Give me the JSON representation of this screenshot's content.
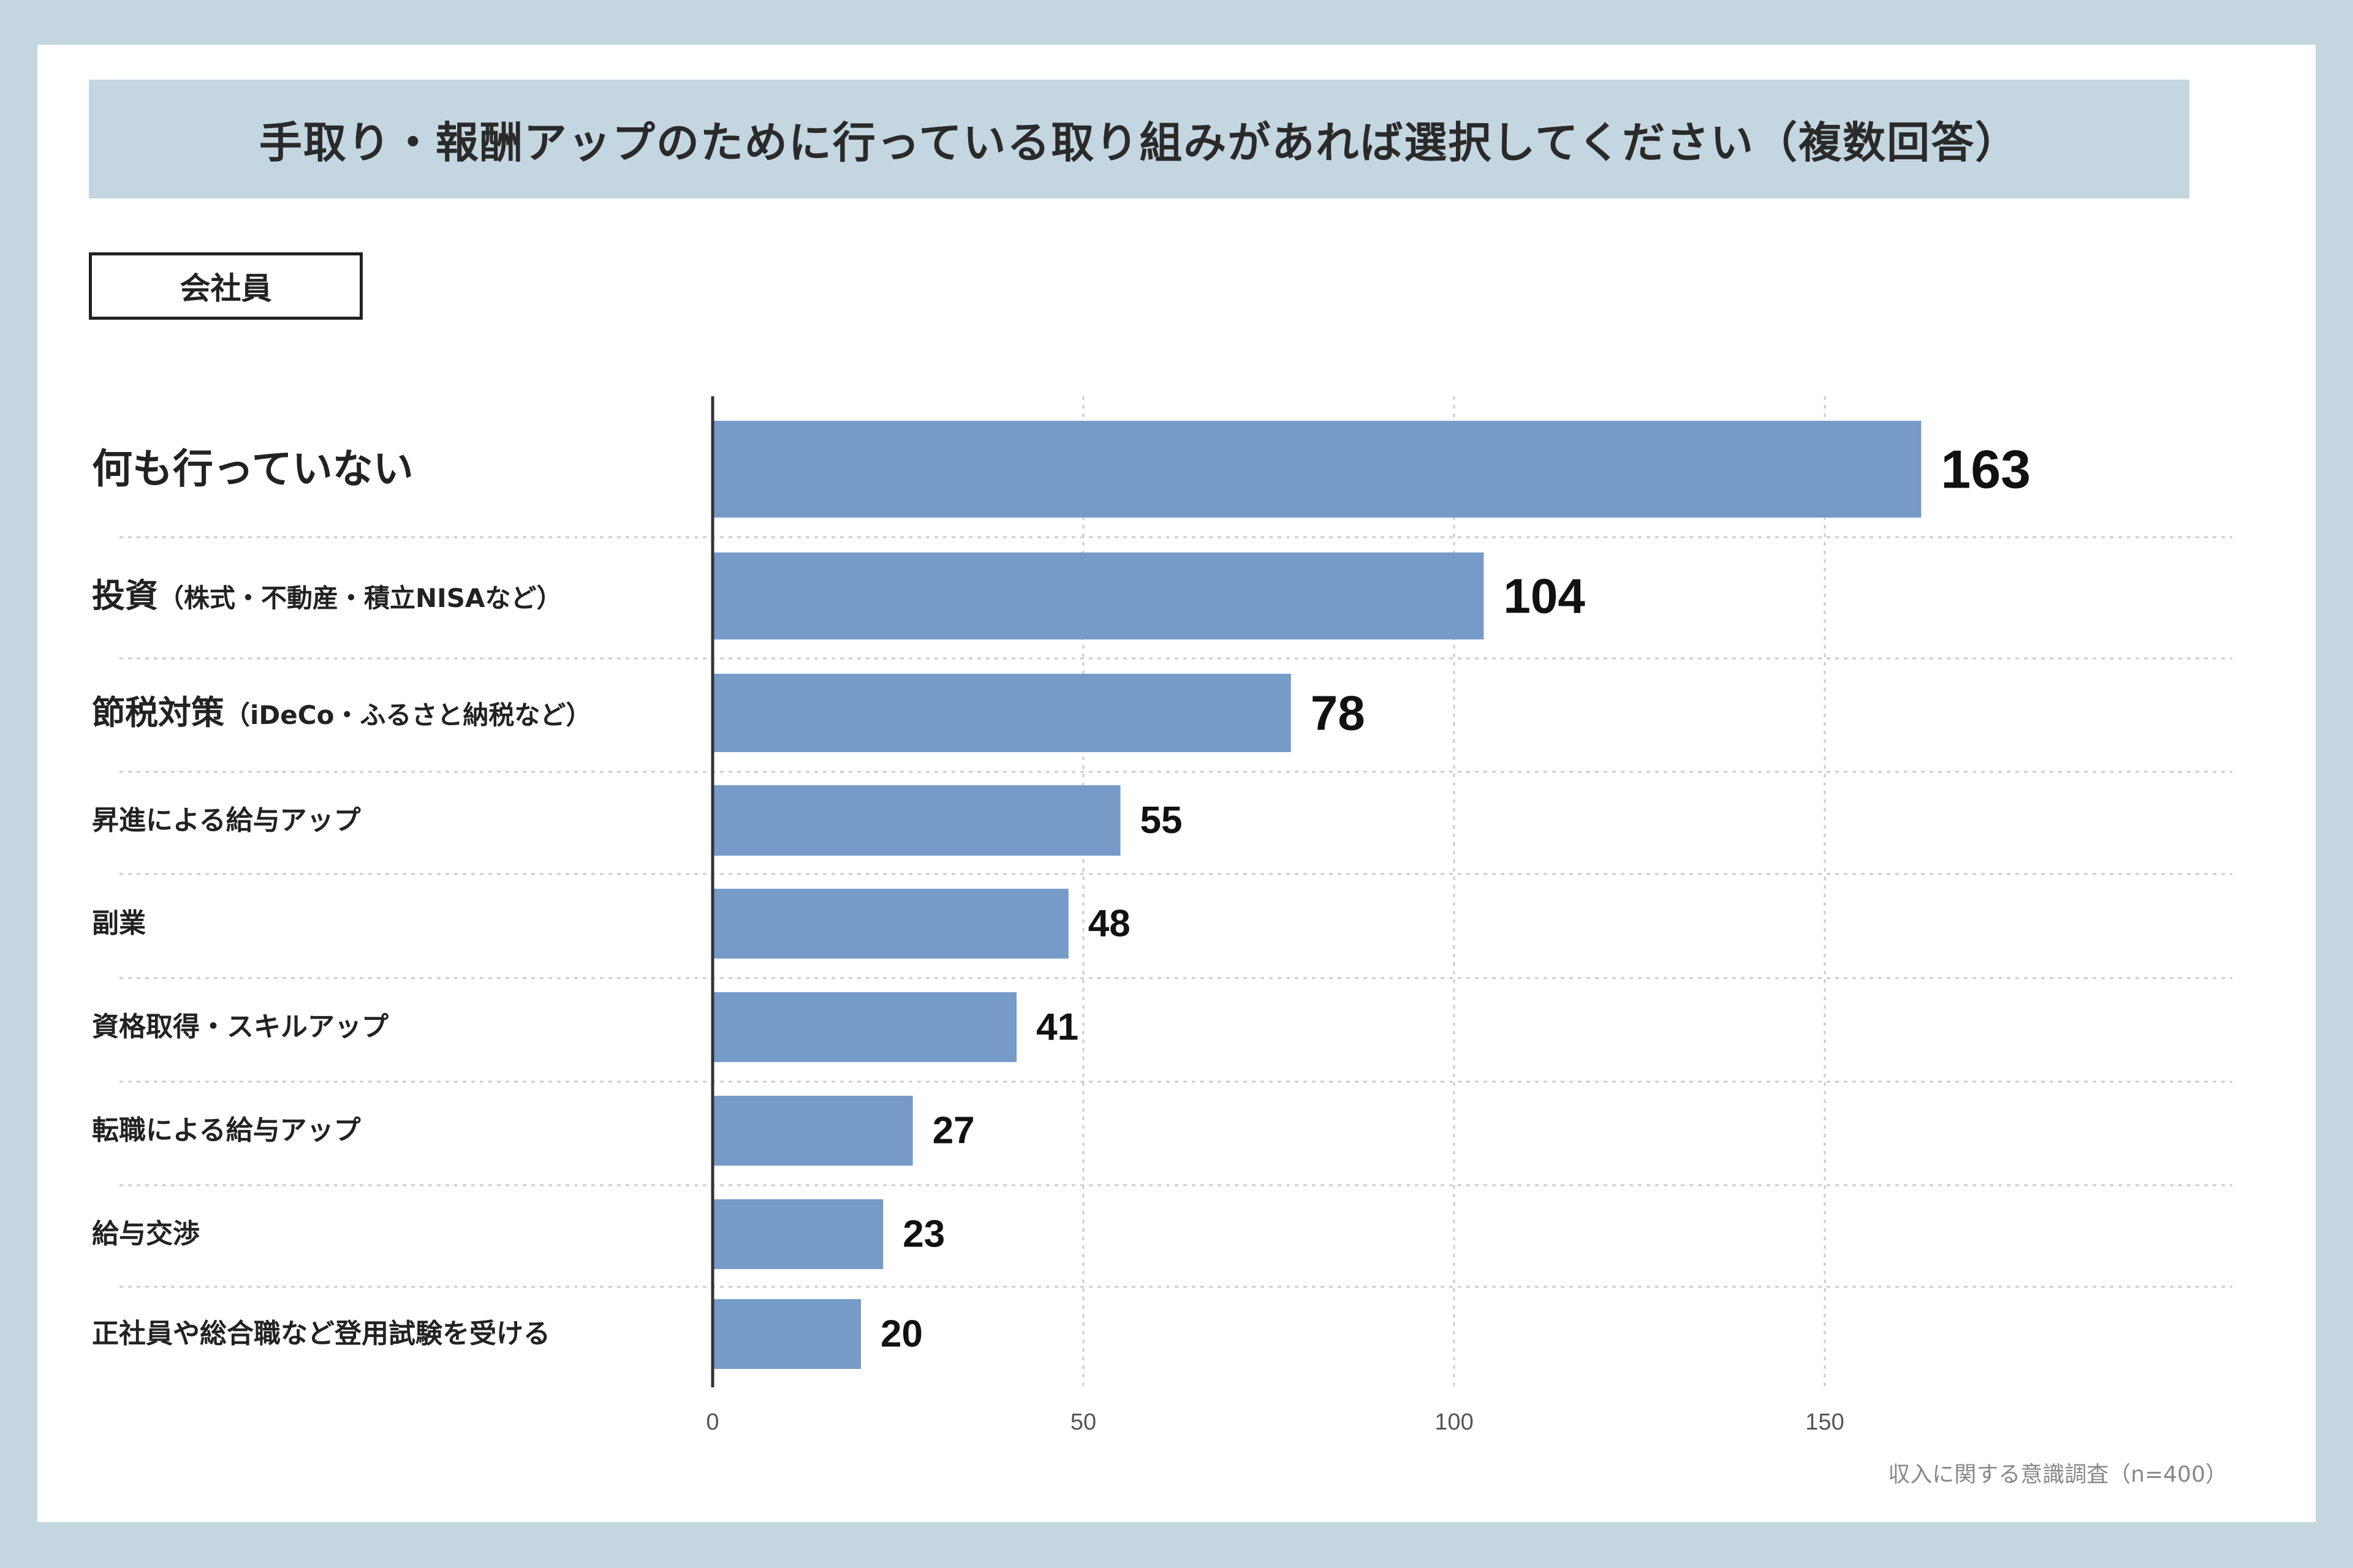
{
  "title": "手取り・報酬アップのために行っている取り組みがあれば選択してください（複数回答）",
  "group_label": "会社員",
  "source_note": "収入に関する意識調査（n=400）",
  "colors": {
    "background": "#c4d6df",
    "bar": "#769bc8",
    "axis": "#333333",
    "grid": "#cccccc",
    "text": "#222222"
  },
  "chart_data": {
    "type": "bar",
    "orientation": "horizontal",
    "categories": [
      {
        "main": "何も行っていない",
        "sub": ""
      },
      {
        "main": "投資",
        "sub": "（株式・不動産・積立NISAなど）"
      },
      {
        "main": "節税対策",
        "sub": "（iDeCo・ふるさと納税など）"
      },
      {
        "main": "昇進による給与アップ",
        "sub": ""
      },
      {
        "main": "副業",
        "sub": ""
      },
      {
        "main": "資格取得・スキルアップ",
        "sub": ""
      },
      {
        "main": "転職による給与アップ",
        "sub": ""
      },
      {
        "main": "給与交渉",
        "sub": ""
      },
      {
        "main": "正社員や総合職など登用試験を受ける",
        "sub": ""
      }
    ],
    "values": [
      163,
      104,
      78,
      55,
      48,
      41,
      27,
      23,
      20
    ],
    "value_labels": [
      "163",
      "104",
      "78",
      "55",
      "48",
      "41",
      "27",
      "23",
      "20"
    ],
    "xlim": [
      0,
      200
    ],
    "x_ticks": [
      0,
      50,
      100,
      150
    ],
    "x_tick_labels": [
      "0",
      "50",
      "100",
      "150"
    ],
    "grid": true,
    "xlabel": "",
    "ylabel": ""
  }
}
